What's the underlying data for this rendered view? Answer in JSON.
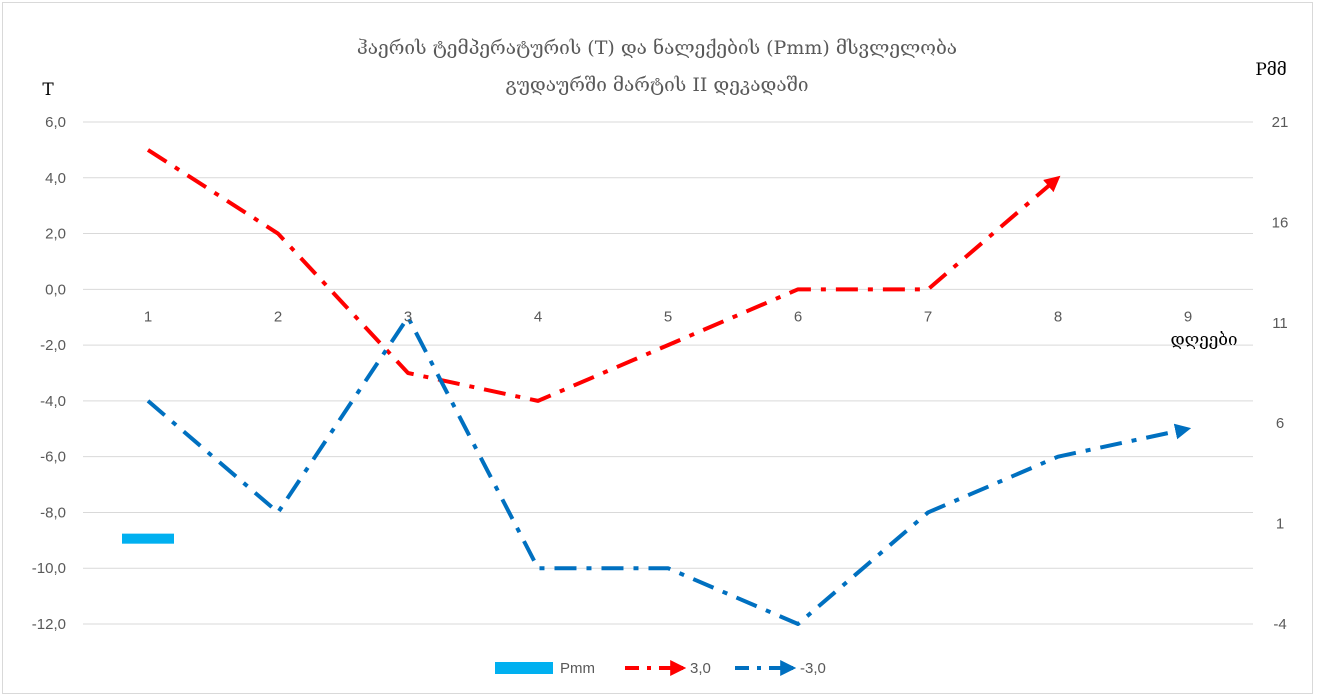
{
  "chart_data": {
    "type": "line",
    "title_lines": [
      "ჰაერის ტემპერატურის (T) და ნალექების (Pmm)  მსვლელობა",
      "გუდაურში მარტის II დეკადაში"
    ],
    "ylabel": "T",
    "y2label": "Pმმ",
    "xlabel": "დღეები",
    "categories": [
      "1",
      "2",
      "3",
      "4",
      "5",
      "6",
      "7",
      "8",
      "9"
    ],
    "ylim": [
      -12,
      6
    ],
    "y_ticks": [
      "6,0",
      "4,0",
      "2,0",
      "0,0",
      "-2,0",
      "-4,0",
      "-6,0",
      "-8,0",
      "-10,0",
      "-12,0"
    ],
    "y2lim": [
      -4,
      21
    ],
    "y2_ticks": [
      "21",
      "16",
      "11",
      "6",
      "1",
      "-4"
    ],
    "series": [
      {
        "name": "Pmm",
        "kind": "bar",
        "axis": "secondary",
        "color": "#00b0f0",
        "values": [
          0.5,
          null,
          null,
          null,
          null,
          null,
          null,
          null,
          null
        ]
      },
      {
        "name": "3,0",
        "kind": "line",
        "axis": "primary",
        "color": "#ff0000",
        "values": [
          5.0,
          2.0,
          -3.0,
          -4.0,
          -2.0,
          0.0,
          0.0,
          4.0,
          null
        ]
      },
      {
        "name": "-3,0",
        "kind": "line",
        "axis": "primary",
        "color": "#0070c0",
        "values": [
          -4.0,
          -8.0,
          -1.0,
          -10.0,
          -10.0,
          -12.0,
          -8.0,
          -6.0,
          -5.0
        ]
      }
    ],
    "legend_position": "bottom",
    "grid": true
  }
}
